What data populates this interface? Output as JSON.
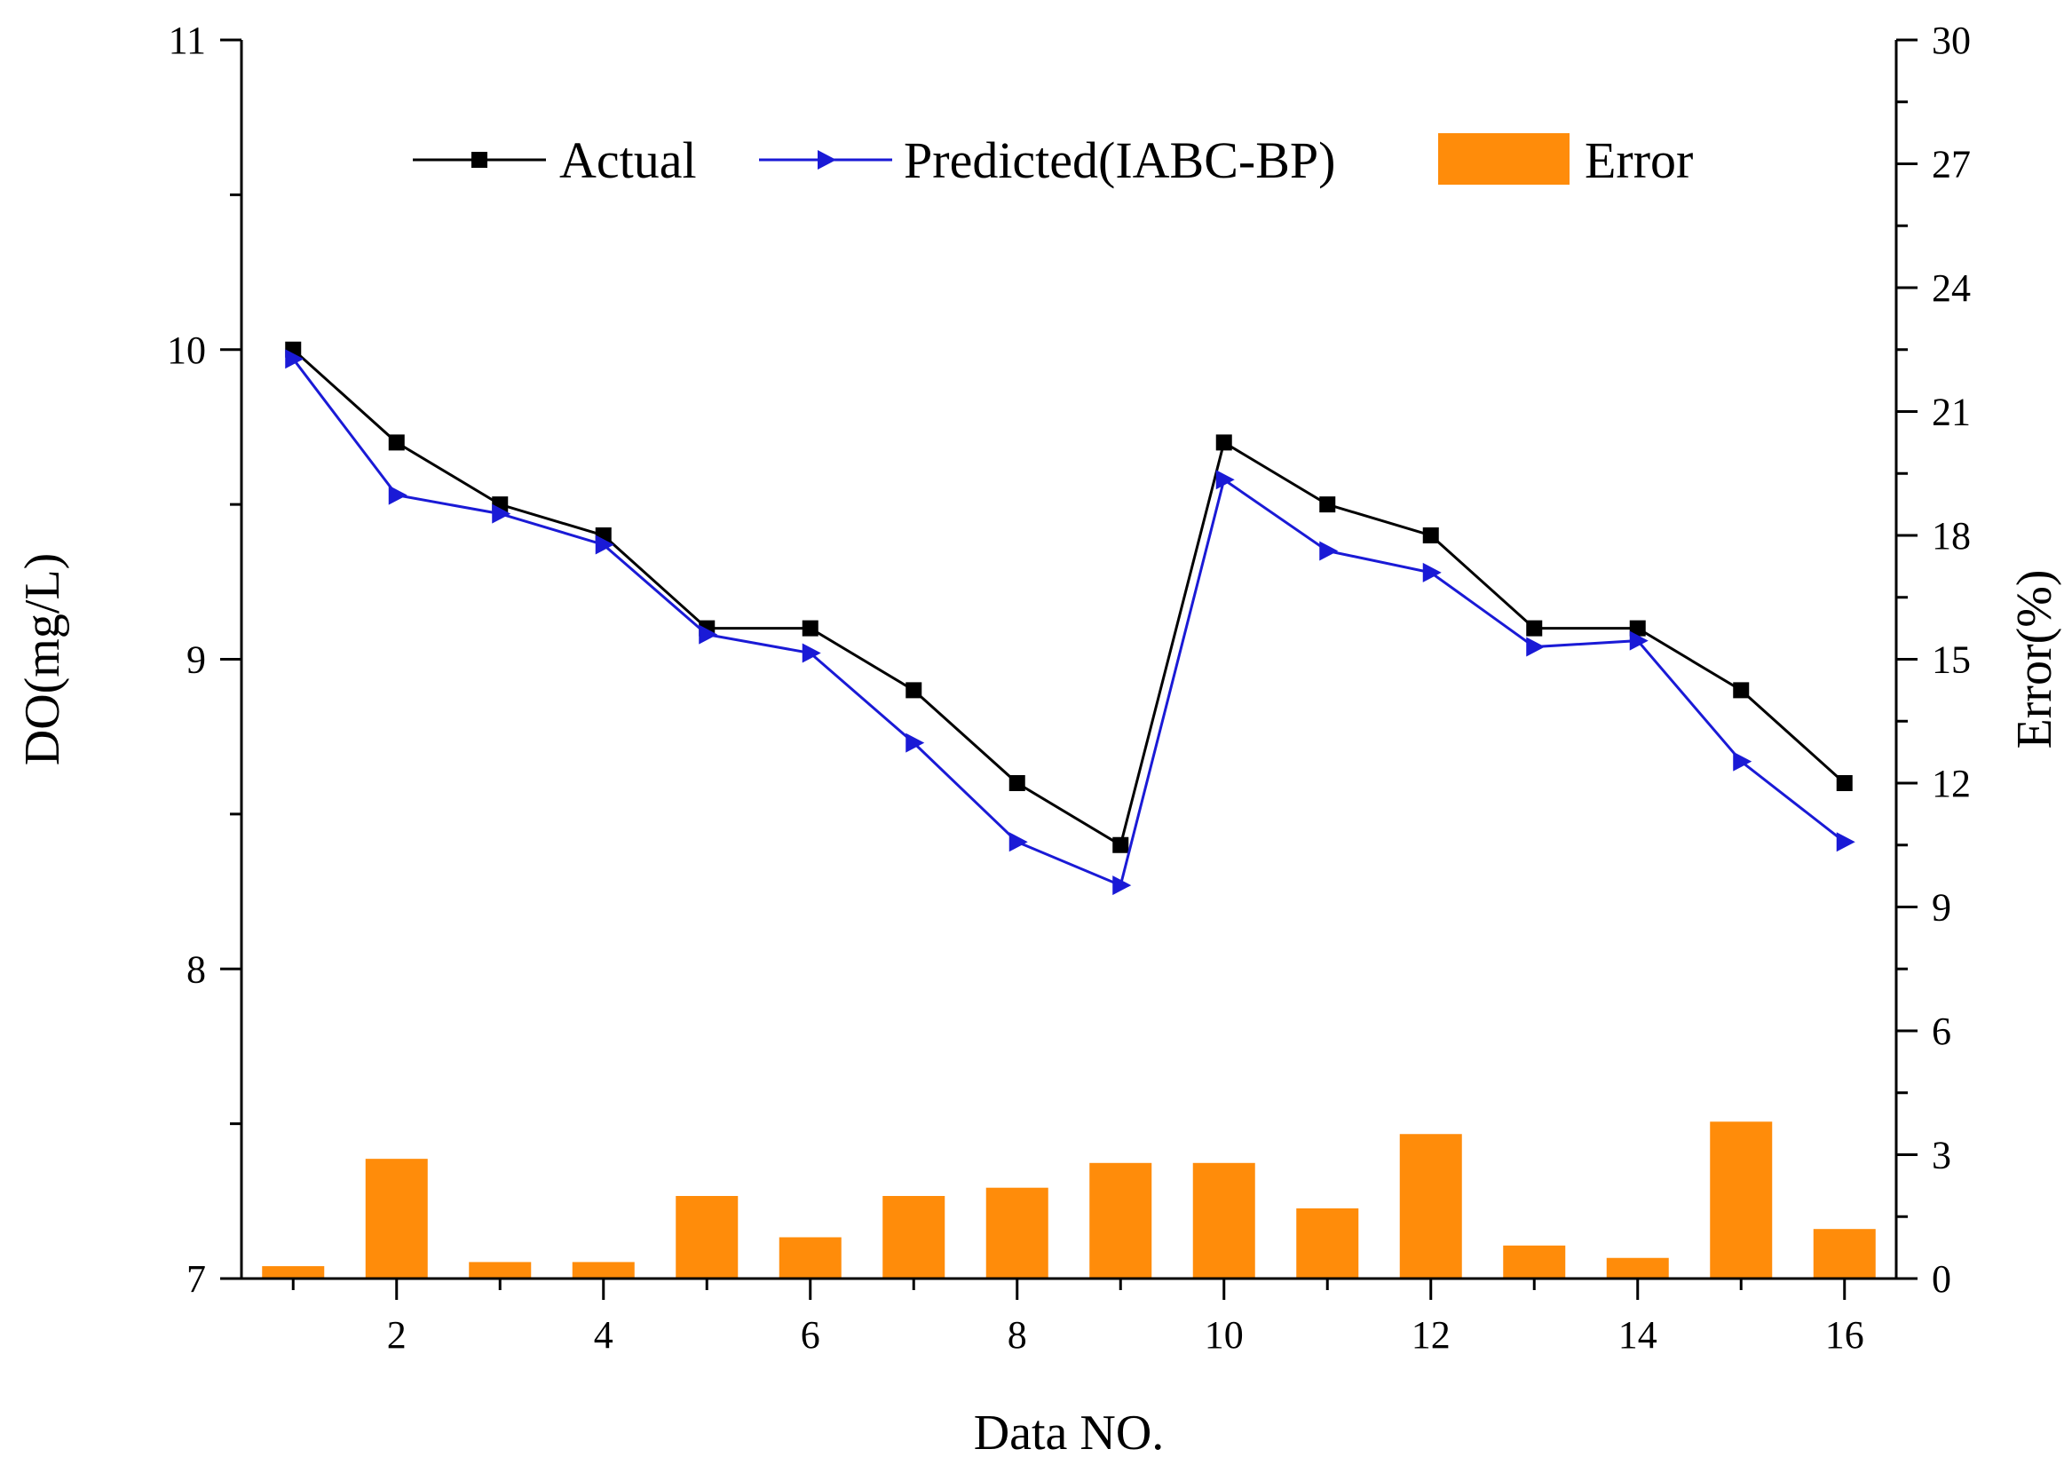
{
  "chart_data": {
    "type": "line",
    "xlabel": "Data NO.",
    "ylabel_left": "DO(mg/L)",
    "ylabel_right": "Error(%)",
    "x": [
      1,
      2,
      3,
      4,
      5,
      6,
      7,
      8,
      9,
      10,
      11,
      12,
      13,
      14,
      15,
      16
    ],
    "x_ticks": [
      2,
      4,
      6,
      8,
      10,
      12,
      14,
      16
    ],
    "x_tick_labels": [
      "2",
      "4",
      "6",
      "8",
      "10",
      "12",
      "14",
      "16"
    ],
    "xlim": [
      0.5,
      16.5
    ],
    "ylim_left": [
      7,
      11
    ],
    "y_left_ticks": [
      7,
      8,
      9,
      10,
      11
    ],
    "y_left_tick_labels": [
      "7",
      "8",
      "9",
      "10",
      "11"
    ],
    "ylim_right": [
      0,
      30
    ],
    "y_right_ticks": [
      0,
      3,
      6,
      9,
      12,
      15,
      18,
      21,
      24,
      27,
      30
    ],
    "y_right_tick_labels": [
      "0",
      "3",
      "6",
      "9",
      "12",
      "15",
      "18",
      "21",
      "24",
      "27",
      "30"
    ],
    "legend_position": "top",
    "series": [
      {
        "name": "Actual",
        "kind": "line",
        "axis": "left",
        "marker": "square",
        "color": "#000000",
        "values": [
          10.0,
          9.7,
          9.5,
          9.4,
          9.1,
          9.1,
          8.9,
          8.6,
          8.4,
          9.7,
          9.5,
          9.4,
          9.1,
          9.1,
          8.9,
          8.6
        ]
      },
      {
        "name": "Predicted(IABC-BP)",
        "kind": "line",
        "axis": "left",
        "marker": "triangle-right",
        "color": "#1a1ad6",
        "values": [
          9.97,
          9.53,
          9.47,
          9.37,
          9.08,
          9.02,
          8.73,
          8.41,
          8.27,
          9.58,
          9.35,
          9.28,
          9.04,
          9.06,
          8.67,
          8.41
        ]
      },
      {
        "name": "Error",
        "kind": "bar",
        "axis": "right",
        "color": "#ff8c0a",
        "values": [
          0.3,
          2.9,
          0.4,
          0.4,
          2.0,
          1.0,
          2.0,
          2.2,
          2.8,
          2.8,
          1.7,
          3.5,
          0.8,
          0.5,
          3.8,
          1.2
        ]
      }
    ]
  }
}
